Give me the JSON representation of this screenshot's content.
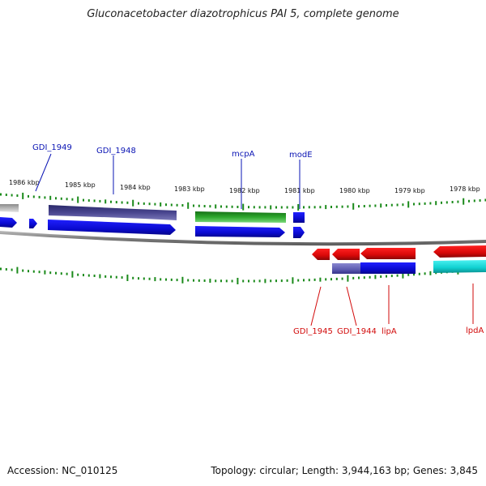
{
  "title": "Gluconacetobacter diazotrophicus PAI 5, complete genome",
  "footer": {
    "accession": "Accession: NC_010125",
    "info": "Topology: circular; Length: 3,944,163 bp; Genes: 3,845"
  },
  "kbp_labels": [
    "1986 kbp",
    "1985 kbp",
    "1984 kbp",
    "1983 kbp",
    "1982 kbp",
    "1981 kbp",
    "1980 kbp",
    "1979 kbp",
    "1978 kbp"
  ],
  "gene_labels_top": [
    "GDI_1949",
    "GDI_1948",
    "mcpA",
    "modE"
  ],
  "gene_labels_bottom": [
    "GDI_1945",
    "GDI_1944",
    "lipA",
    "lpdA"
  ],
  "colors": {
    "forward_cds": "#1010e6",
    "reverse_cds": "#e61010",
    "gene_dark": "#3b3880",
    "gene_green": "#28a028",
    "gene_gray": "#a8a8a8",
    "gene_lavender": "#6c6cc0",
    "gene_cyan": "#10dada",
    "tick_green": "#1a8a1a",
    "backbone": "#888888"
  }
}
